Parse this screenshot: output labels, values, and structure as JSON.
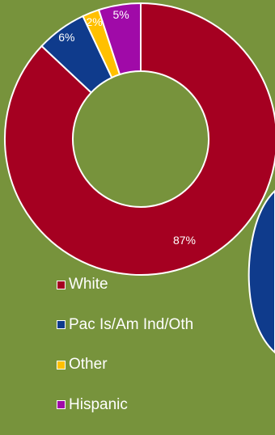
{
  "chart_data": {
    "type": "pie",
    "donut": true,
    "categories": [
      "White",
      "Pac Is/Am Ind/Oth",
      "Other",
      "Hispanic"
    ],
    "values": [
      87,
      6,
      2,
      5
    ],
    "labels": [
      "87%",
      "6%",
      "2%",
      "5%"
    ],
    "colors": [
      "#a50021",
      "#0f3b8c",
      "#ffc000",
      "#a00aa8"
    ],
    "legend_position": "bottom"
  },
  "colors": {
    "background": "#77933c",
    "second_chart_fill": "#0f3b8c",
    "border": "#ffffff"
  }
}
